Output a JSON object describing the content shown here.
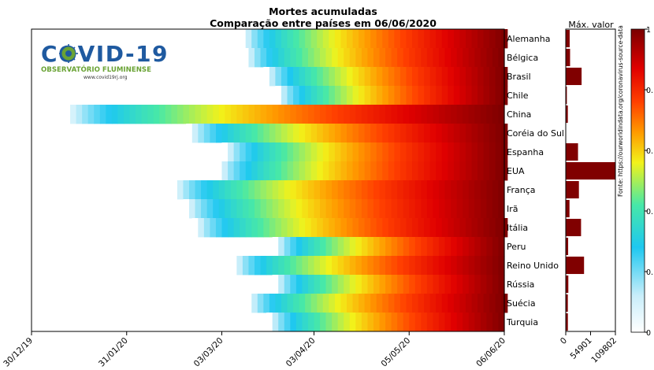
{
  "title": "Mortes acumuladas",
  "subtitle": "Comparação entre países em 06/06/2020",
  "logo": {
    "name": "COVID-19",
    "org": "OBSERVATÓRIO FLUMINENSE",
    "site": "www.covid19rj.org",
    "colors": {
      "blue": "#1f5aa0",
      "green": "#6aa335"
    }
  },
  "source_note": "Fonte: https://ourworldindata.org/coronavirus-source-data",
  "colors": {
    "frame": "#000000",
    "bar": "#800000",
    "background": "#ffffff"
  },
  "colormap": "jet-like: white → cyan → yellow → orange → red → dark red",
  "chart_data": [
    {
      "type": "heatmap",
      "description_of_values": "cumulative deaths normalized per country (0 to 1), by date",
      "x": {
        "ticks": [
          "30/12/19",
          "31/01/20",
          "03/03/20",
          "03/04/20",
          "05/05/20",
          "06/06/20"
        ],
        "range": [
          "2019-12-30",
          "2020-06-06"
        ]
      },
      "rows": [
        {
          "country": "Alemanha",
          "first_death": "2020-03-09"
        },
        {
          "country": "Bélgica",
          "first_death": "2020-03-10"
        },
        {
          "country": "Brasil",
          "first_death": "2020-03-17"
        },
        {
          "country": "Chile",
          "first_death": "2020-03-21"
        },
        {
          "country": "China",
          "first_death": "2020-01-10"
        },
        {
          "country": "Coréia do Sul",
          "first_death": "2020-02-20"
        },
        {
          "country": "Espanha",
          "first_death": "2020-03-03"
        },
        {
          "country": "EUA",
          "first_death": "2020-03-01"
        },
        {
          "country": "França",
          "first_death": "2020-02-15"
        },
        {
          "country": "Irã",
          "first_death": "2020-02-19"
        },
        {
          "country": "Itália",
          "first_death": "2020-02-22"
        },
        {
          "country": "Peru",
          "first_death": "2020-03-20"
        },
        {
          "country": "Reino Unido",
          "first_death": "2020-03-06"
        },
        {
          "country": "Rússia",
          "first_death": "2020-03-20"
        },
        {
          "country": "Suécia",
          "first_death": "2020-03-11"
        },
        {
          "country": "Turquia",
          "first_death": "2020-03-18"
        }
      ]
    },
    {
      "type": "bar",
      "orientation": "horizontal",
      "title": "Máx. valor",
      "categories": [
        "Alemanha",
        "Bélgica",
        "Brasil",
        "Chile",
        "China",
        "Coréia do Sul",
        "Espanha",
        "EUA",
        "França",
        "Irã",
        "Itália",
        "Peru",
        "Reino Unido",
        "Rússia",
        "Suécia",
        "Turquia"
      ],
      "values": [
        8685,
        9548,
        35026,
        2475,
        4634,
        273,
        27135,
        109802,
        29111,
        8281,
        33846,
        5301,
        40465,
        5717,
        4639,
        4729
      ],
      "xlim": [
        0,
        109802
      ],
      "ticks": [
        "0",
        "54901",
        "109802"
      ]
    },
    {
      "type": "colorbar",
      "ticks": [
        "0",
        "0.",
        "0.",
        "0.",
        "0.",
        "1"
      ],
      "range": [
        0,
        1
      ]
    }
  ]
}
